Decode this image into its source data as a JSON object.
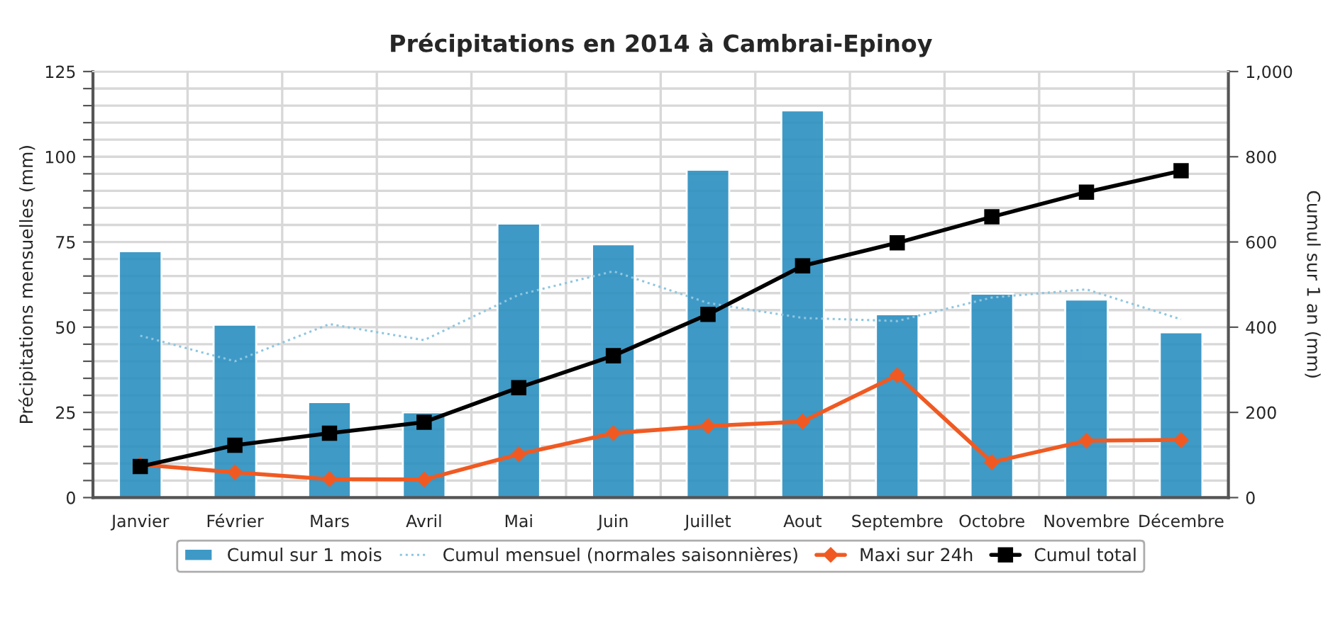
{
  "chart_data": {
    "type": "bar",
    "title": "Précipitations en 2014 à Cambrai-Epinoy",
    "ylabel": "Précipitations mensuelles (mm)",
    "y2label": "Cumul sur 1 an (mm)",
    "categories": [
      "Janvier",
      "Février",
      "Mars",
      "Avril",
      "Mai",
      "Juin",
      "Juillet",
      "Aout",
      "Septembre",
      "Octobre",
      "Novembre",
      "Décembre"
    ],
    "series": [
      {
        "name": "Cumul sur 1 mois",
        "color": "#2b8fc0",
        "values": [
          72.3,
          50.7,
          28.0,
          25.0,
          80.4,
          74.3,
          96.2,
          113.6,
          53.8,
          59.8,
          58.1,
          48.5
        ]
      },
      {
        "name": "Cumul mensuel (normales saisonnières)",
        "type": "line",
        "color": "#8ec6e0",
        "line_style": "dotted",
        "marker": "none",
        "values": [
          47.5,
          40.0,
          50.9,
          46.2,
          59.5,
          66.4,
          57.1,
          52.7,
          51.8,
          58.7,
          61.1,
          52.3
        ]
      },
      {
        "name": "Maxi sur 24h",
        "type": "line",
        "color": "#f05a22",
        "line_style": "solid",
        "marker": "diamond",
        "values": [
          9.7,
          7.4,
          5.4,
          5.3,
          12.7,
          18.9,
          21.0,
          22.3,
          35.9,
          10.4,
          16.7,
          16.9
        ]
      },
      {
        "name": "Cumul total",
        "type": "line",
        "color": "#000000",
        "line_style": "solid",
        "marker": "square",
        "axis": "y2",
        "values": [
          73,
          123,
          151,
          177,
          258,
          333,
          430,
          544,
          598,
          659,
          717,
          767
        ]
      }
    ],
    "ylim": [
      0,
      125
    ],
    "yticks": [
      0,
      {
        "value": 5,
        "label": null
      },
      {
        "value": 10,
        "label": null
      },
      {
        "value": 15,
        "label": null
      },
      {
        "value": 20,
        "label": null
      },
      25,
      {
        "value": 30,
        "label": null
      },
      {
        "value": 35,
        "label": null
      },
      {
        "value": 40,
        "label": null
      },
      {
        "value": 45,
        "label": null
      },
      50,
      {
        "value": 55,
        "label": null
      },
      {
        "value": 60,
        "label": null
      },
      {
        "value": 65,
        "label": null
      },
      {
        "value": 70,
        "label": null
      },
      75,
      {
        "value": 80,
        "label": null
      },
      {
        "value": 85,
        "label": null
      },
      {
        "value": 90,
        "label": null
      },
      {
        "value": 95,
        "label": null
      },
      100,
      {
        "value": 105,
        "label": null
      },
      {
        "value": 110,
        "label": null
      },
      {
        "value": 115,
        "label": null
      },
      {
        "value": 120,
        "label": null
      },
      125
    ],
    "y2lim": [
      0,
      1000
    ],
    "y2ticks": [
      0,
      200,
      400,
      600,
      800,
      {
        "value": 1000,
        "label": "1,000"
      }
    ],
    "grid": true,
    "legend": "bottom"
  }
}
